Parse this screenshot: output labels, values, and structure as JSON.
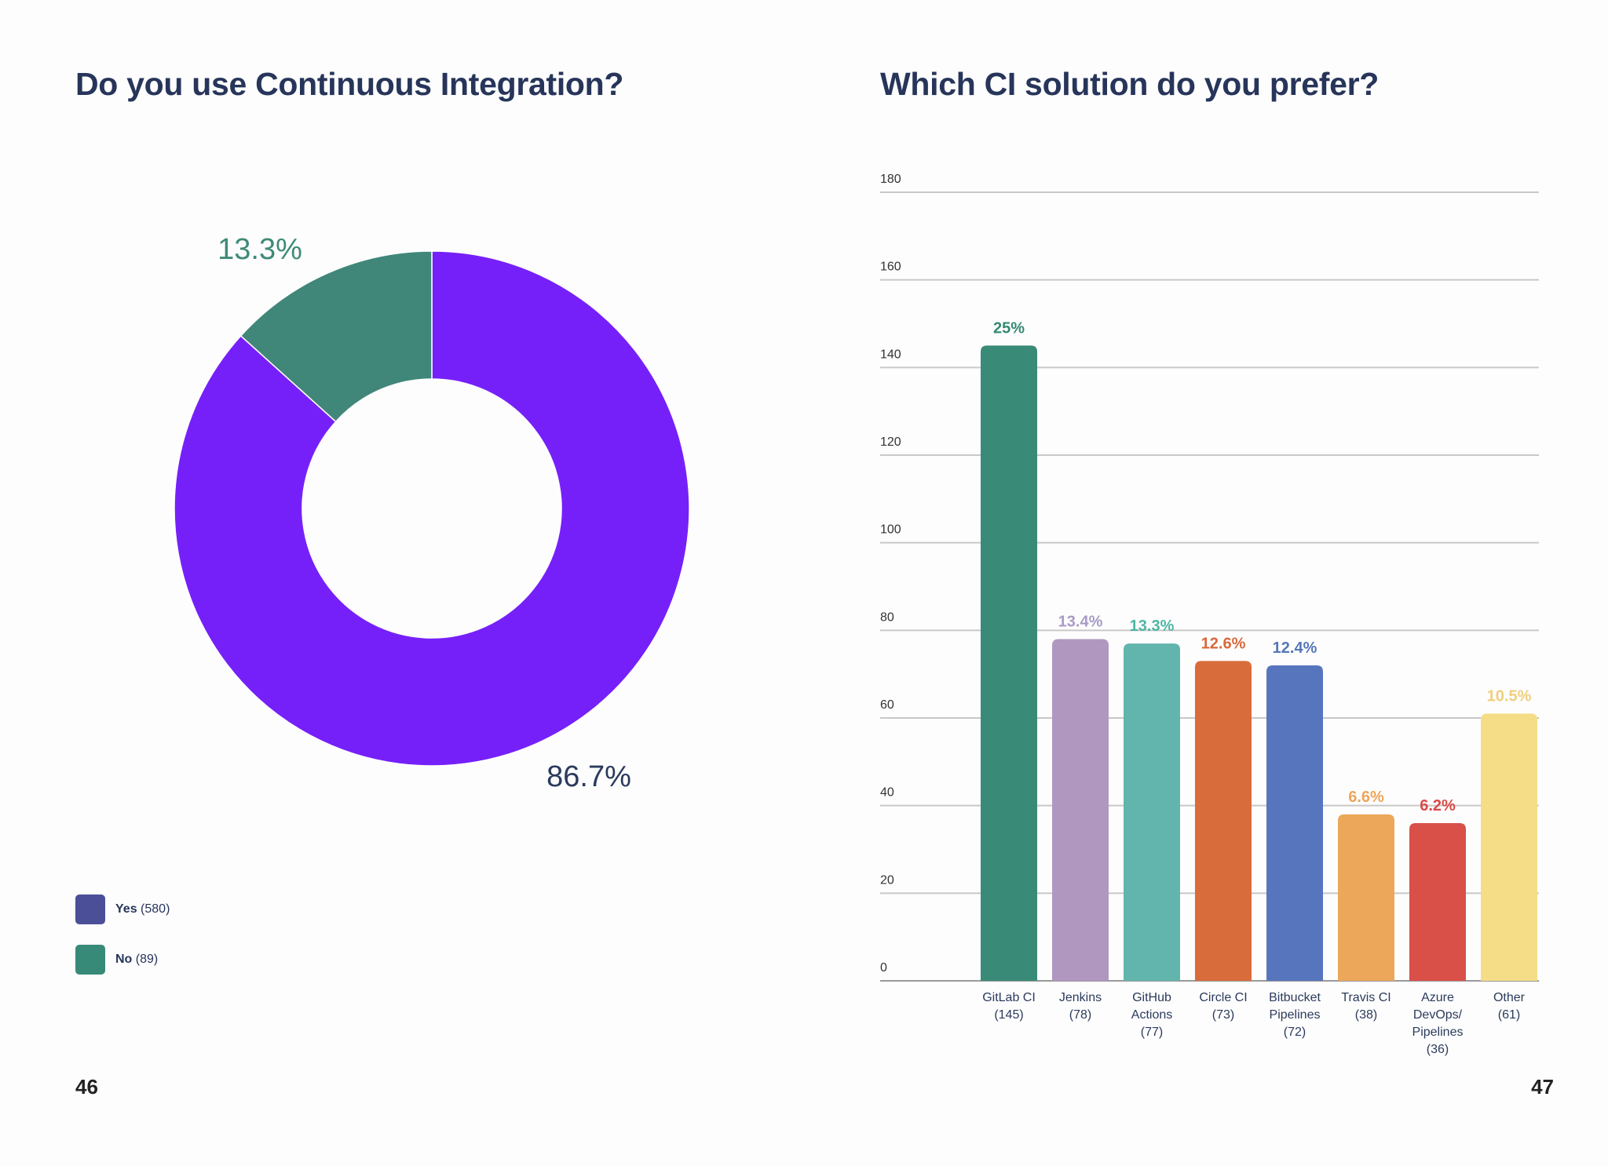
{
  "pages": {
    "left_number": "46",
    "right_number": "47"
  },
  "chart_data": [
    {
      "type": "pie",
      "title": "Do you use Continuous Integration?",
      "donut": true,
      "slices": [
        {
          "label": "Yes",
          "count": 580,
          "percent_label": "86.7%",
          "value": 86.7,
          "color": "#7620f9",
          "legend_color": "#4b4f97"
        },
        {
          "label": "No",
          "count": 89,
          "percent_label": "13.3%",
          "value": 13.3,
          "color": "#40877a",
          "legend_color": "#388a78"
        }
      ],
      "legend": [
        {
          "name": "Yes",
          "count": "(580)"
        },
        {
          "name": "No",
          "count": "(89)"
        }
      ],
      "legend_position": "bottom-left"
    },
    {
      "type": "bar",
      "title": "Which CI solution do you prefer?",
      "categories": [
        [
          "GitLab CI",
          "(145)"
        ],
        [
          "Jenkins",
          "(78)"
        ],
        [
          "GitHub",
          "Actions",
          "(77)"
        ],
        [
          "Circle CI",
          "(73)"
        ],
        [
          "Bitbucket",
          "Pipelines",
          "(72)"
        ],
        [
          "Travis CI",
          "(38)"
        ],
        [
          "Azure",
          "DevOps/",
          "Pipelines",
          "(36)"
        ],
        [
          "Other",
          "(61)"
        ]
      ],
      "values": [
        145,
        78,
        77,
        73,
        72,
        38,
        36,
        61
      ],
      "data_labels": [
        "25%",
        "13.4%",
        "13.3%",
        "12.6%",
        "12.4%",
        "6.6%",
        "6.2%",
        "10.5%"
      ],
      "colors": [
        "#3a8a78",
        "#b097c0",
        "#62b5ac",
        "#d86c3b",
        "#5775bd",
        "#eca75a",
        "#d95049",
        "#f5dd87"
      ],
      "label_colors": [
        "#358a72",
        "#a99bc7",
        "#4fb5a4",
        "#d8683a",
        "#5577ba",
        "#eea55a",
        "#d94b46",
        "#efcf7e"
      ],
      "yticks": [
        0,
        20,
        40,
        60,
        80,
        100,
        120,
        140,
        160,
        180
      ],
      "ylim": [
        0,
        180
      ],
      "grid": true
    }
  ]
}
